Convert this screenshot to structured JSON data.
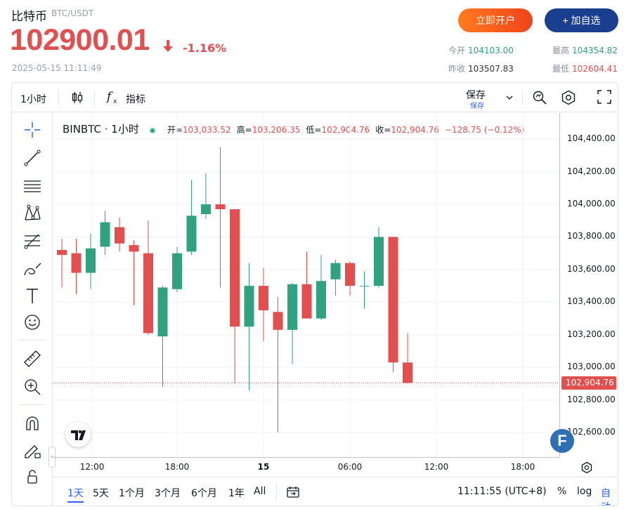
{
  "header": {
    "name": "比特币",
    "pair": "BTC/USDT",
    "price": "102900.01",
    "change_pct": "-1.16%",
    "timestamp": "2025-05-15 11:11:49",
    "open_account_label": "立即开户",
    "add_watchlist_label": "+ 加自选",
    "stats": {
      "open_label": "今开",
      "open_value": "104103.00",
      "high_label": "最高",
      "high_value": "104354.82",
      "prev_close_label": "昨收",
      "prev_close_value": "103507.83",
      "low_label": "最低",
      "low_value": "102604.41"
    },
    "colors": {
      "down": "#e24f4f",
      "up": "#2fa37f",
      "brand_blue": "#1a3f8f"
    }
  },
  "toolbar": {
    "interval": "1小时",
    "indicator_label": "指标",
    "save_label": "保存",
    "save_sub_label": "保存",
    "icons": [
      "candle-type-icon",
      "function-icon",
      "chevron-down-icon",
      "alert-icon",
      "settings-icon",
      "fullscreen-icon"
    ]
  },
  "left_tools": [
    "crosshair-icon",
    "trend-line-icon",
    "horizontal-lines-icon",
    "pattern-icon",
    "fib-icon",
    "brush-icon",
    "text-icon",
    "emoji-icon",
    "ruler-icon",
    "zoom-in-icon",
    "magnet-icon",
    "pencil-lock-icon",
    "lock-icon"
  ],
  "legend": {
    "symbol": "BINBTC · 1小时",
    "open_label": "开=",
    "open": "103,033.52",
    "high_label": "高=",
    "high": "103,206.35",
    "low_label": "低=",
    "low": "102,904.76",
    "close_label": "收=",
    "close": "102,904.76",
    "change": "−128.75 (−0.12%)"
  },
  "chart_data": {
    "type": "candlestick",
    "ylim": [
      102450,
      104560
    ],
    "yticks": [
      "104,400.00",
      "104,200.00",
      "104,000.00",
      "103,800.00",
      "103,600.00",
      "103,400.00",
      "103,200.00",
      "103,000.00",
      "102,800.00",
      "102,600.00"
    ],
    "ytick_values": [
      104400,
      104200,
      104000,
      103800,
      103600,
      103400,
      103200,
      103000,
      102800,
      102600
    ],
    "last_price_label": "102,904.76",
    "last_price": 102904.76,
    "xticks": [
      {
        "label": "12:00",
        "index": 2.1,
        "bold": false
      },
      {
        "label": "18:00",
        "index": 8.0,
        "bold": false
      },
      {
        "label": "15",
        "index": 14.0,
        "bold": true
      },
      {
        "label": "06:00",
        "index": 20.0,
        "bold": false
      },
      {
        "label": "12:00",
        "index": 26.0,
        "bold": false
      },
      {
        "label": "18:00",
        "index": 32.0,
        "bold": false
      }
    ],
    "candles": [
      {
        "o": 103720,
        "h": 103790,
        "l": 103490,
        "c": 103690
      },
      {
        "o": 103700,
        "h": 103790,
        "l": 103450,
        "c": 103580
      },
      {
        "o": 103580,
        "h": 103820,
        "l": 103480,
        "c": 103730
      },
      {
        "o": 103740,
        "h": 103960,
        "l": 103690,
        "c": 103890
      },
      {
        "o": 103860,
        "h": 103920,
        "l": 103710,
        "c": 103760
      },
      {
        "o": 103750,
        "h": 103780,
        "l": 103380,
        "c": 103710
      },
      {
        "o": 103700,
        "h": 103900,
        "l": 103200,
        "c": 103210
      },
      {
        "o": 103190,
        "h": 103500,
        "l": 102880,
        "c": 103490
      },
      {
        "o": 103480,
        "h": 103740,
        "l": 103460,
        "c": 103700
      },
      {
        "o": 103710,
        "h": 104150,
        "l": 103690,
        "c": 103930
      },
      {
        "o": 103940,
        "h": 104190,
        "l": 103910,
        "c": 104000
      },
      {
        "o": 104000,
        "h": 104350,
        "l": 103490,
        "c": 103970
      },
      {
        "o": 103970,
        "h": 103970,
        "l": 102900,
        "c": 103250
      },
      {
        "o": 103250,
        "h": 103640,
        "l": 102860,
        "c": 103500
      },
      {
        "o": 103500,
        "h": 103610,
        "l": 103160,
        "c": 103350
      },
      {
        "o": 103340,
        "h": 103430,
        "l": 102600,
        "c": 103230
      },
      {
        "o": 103230,
        "h": 103520,
        "l": 103020,
        "c": 103510
      },
      {
        "o": 103510,
        "h": 103710,
        "l": 103300,
        "c": 103300
      },
      {
        "o": 103300,
        "h": 103690,
        "l": 103290,
        "c": 103530
      },
      {
        "o": 103540,
        "h": 103660,
        "l": 103440,
        "c": 103640
      },
      {
        "o": 103640,
        "h": 103650,
        "l": 103440,
        "c": 103500
      },
      {
        "o": 103500,
        "h": 103590,
        "l": 103360,
        "c": 103500
      },
      {
        "o": 103500,
        "h": 103860,
        "l": 103490,
        "c": 103800
      },
      {
        "o": 103800,
        "h": 103800,
        "l": 102970,
        "c": 103030
      },
      {
        "o": 103030,
        "h": 103210,
        "l": 102900,
        "c": 102905
      }
    ],
    "up_color": "#2fa37f",
    "down_color": "#e24f4f",
    "grid": true
  },
  "bottom": {
    "ranges": [
      "1天",
      "5天",
      "1个月",
      "3个月",
      "6个月",
      "1年",
      "All"
    ],
    "active_range": "1天",
    "clock": "11:11:55 (UTC+8)",
    "pct_label": "%",
    "log_label": "log",
    "auto_label": "自动"
  },
  "badges": {
    "tv_logo": "tradingview-logo-icon",
    "f_badge": "F"
  }
}
